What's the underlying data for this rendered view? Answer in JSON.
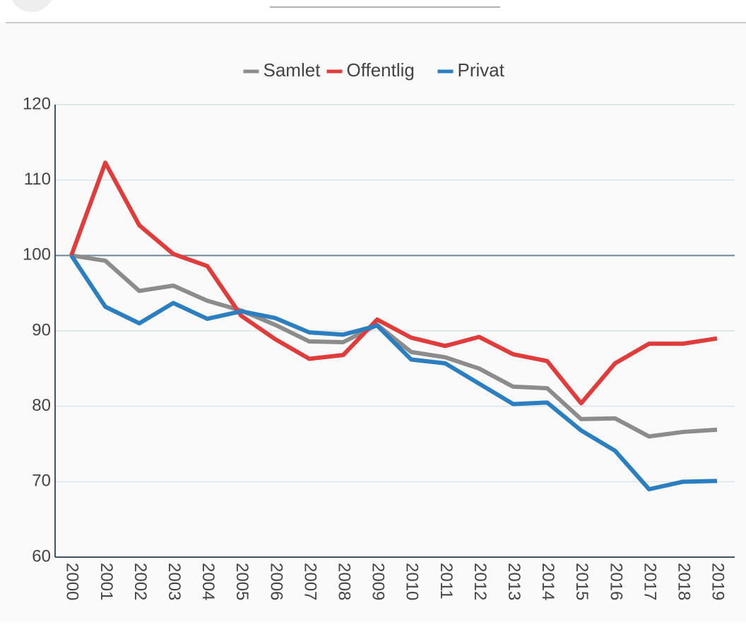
{
  "chart_data": {
    "type": "line",
    "categories": [
      "2000",
      "2001",
      "2002",
      "2003",
      "2004",
      "2005",
      "2006",
      "2007",
      "2008",
      "2009",
      "2010",
      "2011",
      "2012",
      "2013",
      "2014",
      "2015",
      "2016",
      "2017",
      "2018",
      "2019"
    ],
    "series": [
      {
        "name": "Samlet",
        "color": "#8c8c8c",
        "values": [
          100,
          99.3,
          95.3,
          96,
          94,
          92.7,
          90.8,
          88.6,
          88.5,
          90.8,
          87.2,
          86.5,
          85,
          82.6,
          82.4,
          78.3,
          78.4,
          76,
          76.6,
          76.9
        ]
      },
      {
        "name": "Offentlig",
        "color": "#e03c3c",
        "values": [
          100,
          112.3,
          104,
          100.2,
          98.6,
          92,
          88.9,
          86.3,
          86.8,
          91.5,
          89.1,
          88,
          89.2,
          86.9,
          86,
          80.4,
          85.7,
          88.3,
          88.3,
          89
        ]
      },
      {
        "name": "Privat",
        "color": "#2b7fc0",
        "values": [
          100,
          93.2,
          91,
          93.7,
          91.6,
          92.6,
          91.7,
          89.8,
          89.5,
          90.7,
          86.2,
          85.7,
          83,
          80.3,
          80.5,
          76.8,
          74.1,
          69,
          70,
          70.1
        ]
      }
    ],
    "ylim": [
      60,
      120
    ],
    "yticks": [
      60,
      70,
      80,
      90,
      100,
      110,
      120
    ],
    "grid": true,
    "reference_line": 100,
    "legend": "top"
  }
}
